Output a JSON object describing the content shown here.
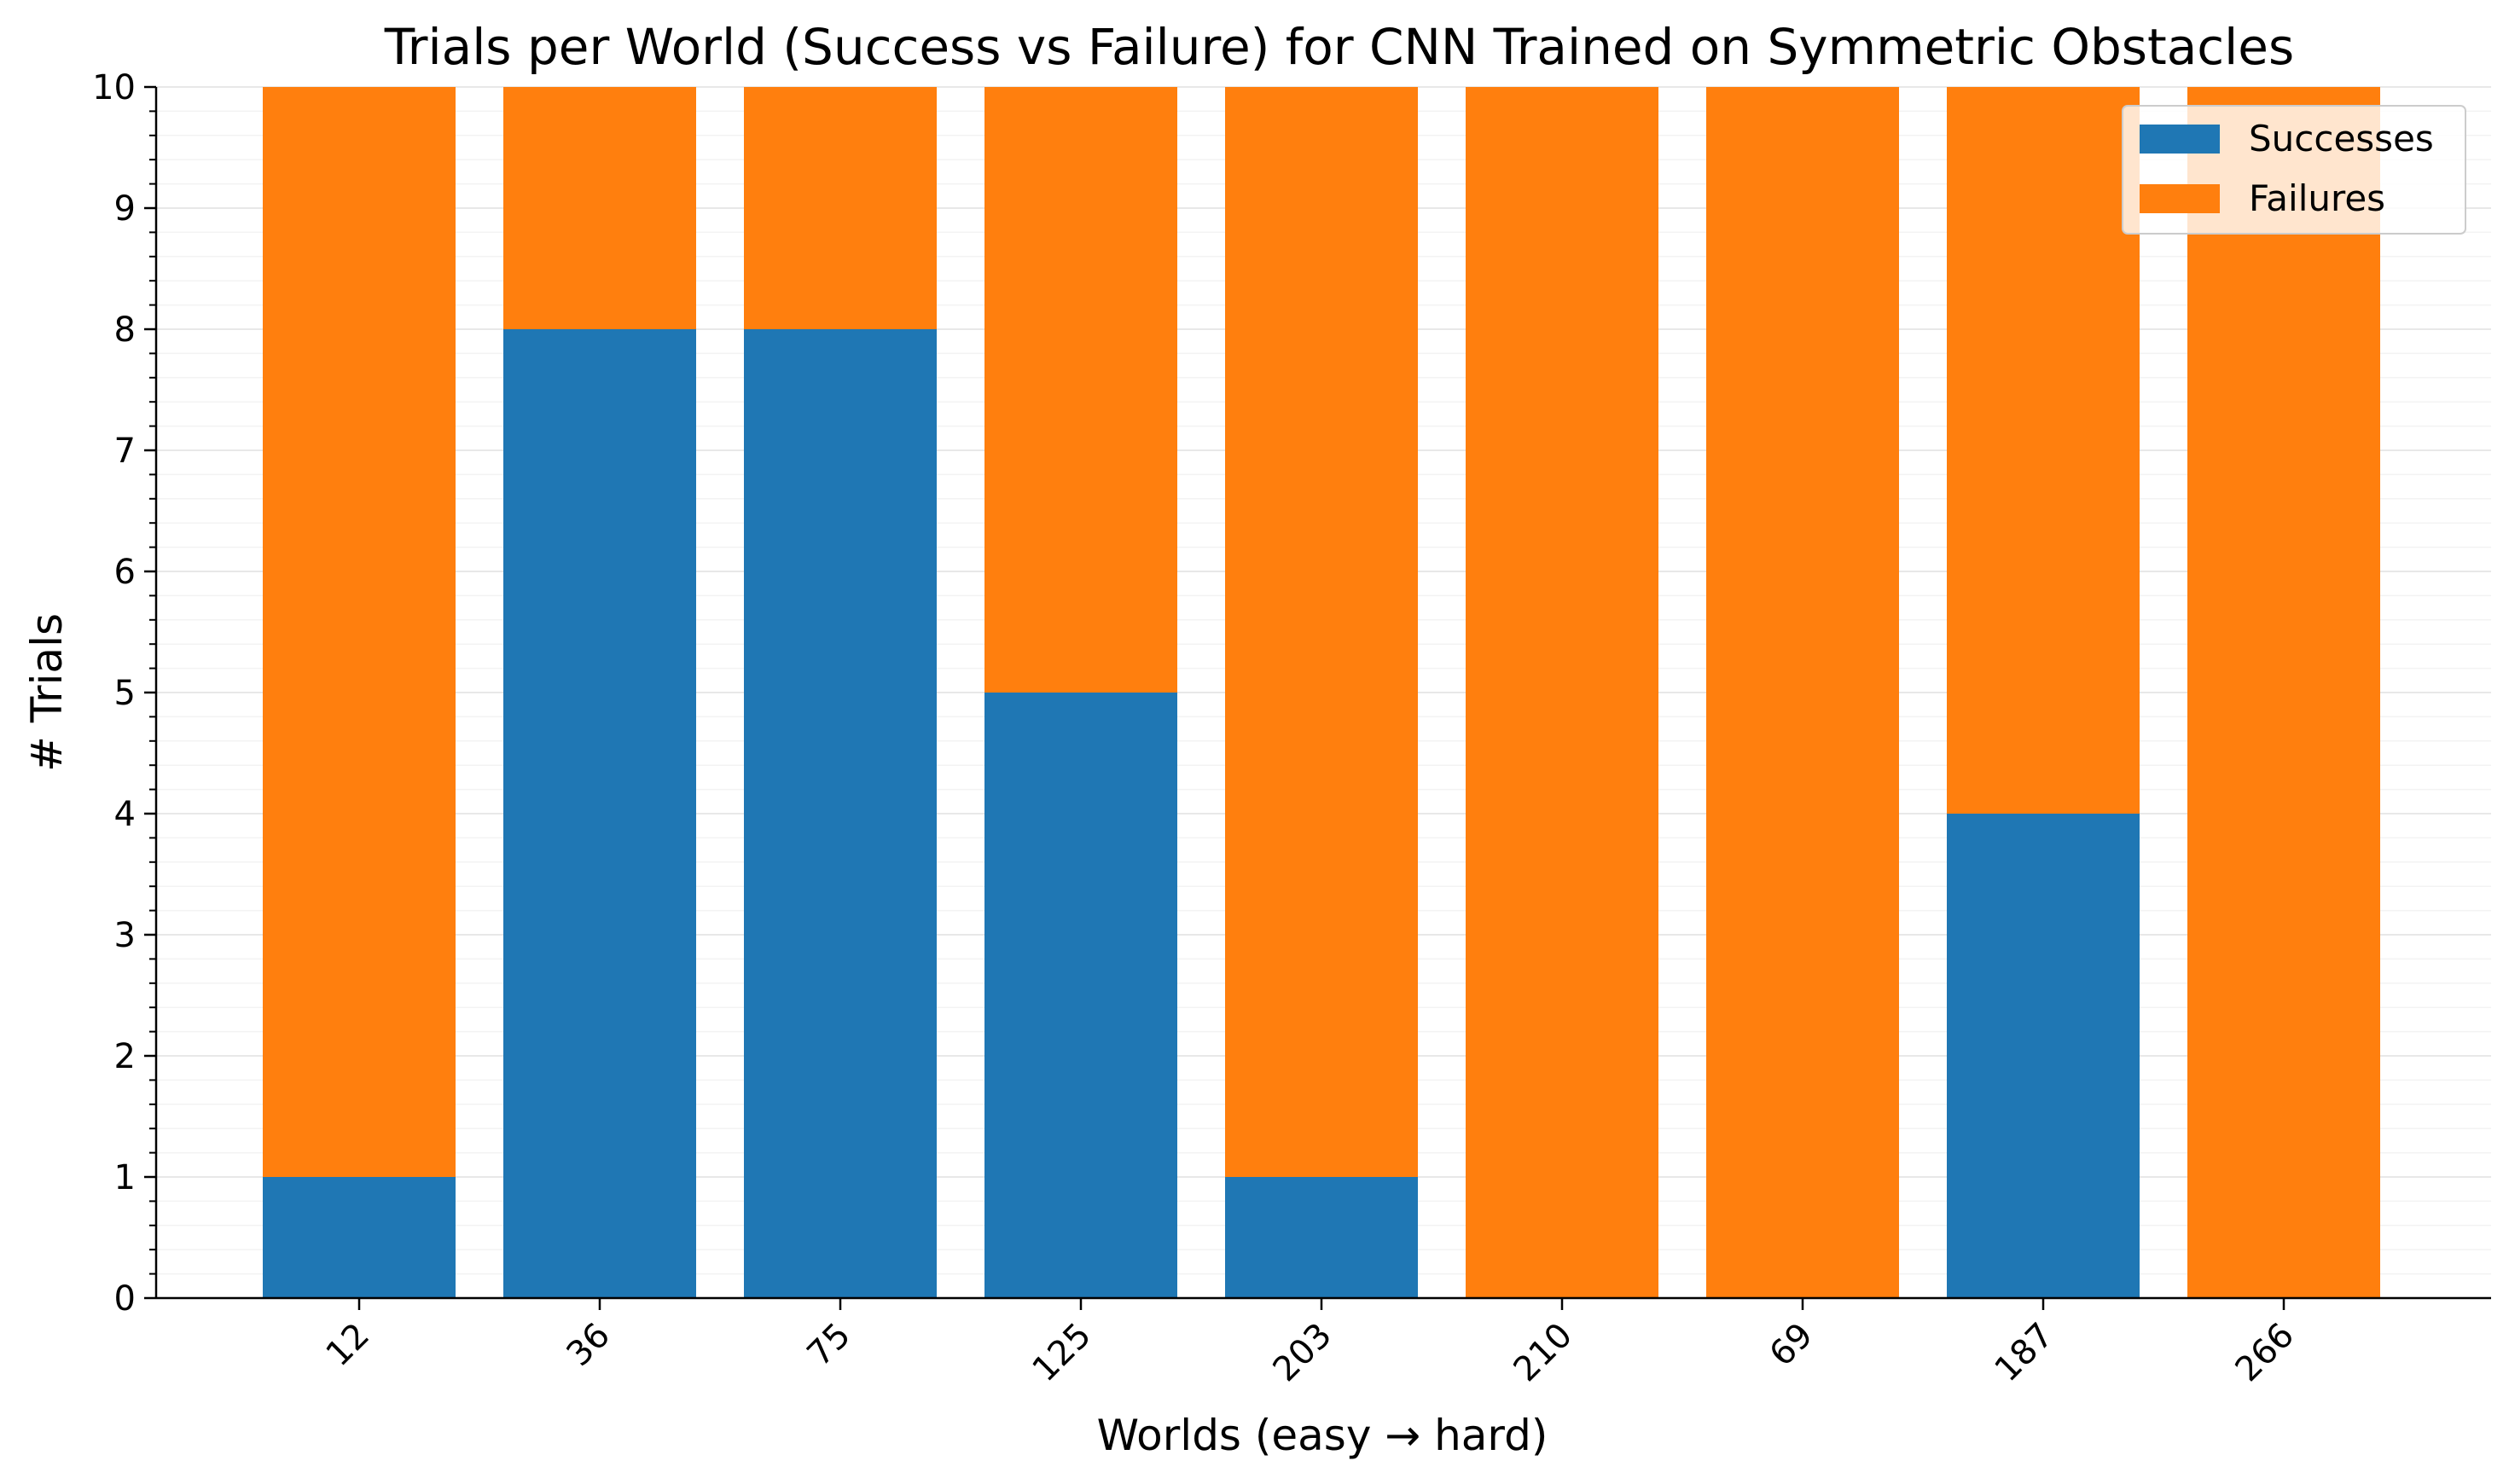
{
  "chart_data": {
    "type": "bar",
    "stacked": true,
    "title": "Trials per World (Success vs Failure) for CNN Trained on Symmetric Obstacles",
    "xlabel": "Worlds (easy → hard)",
    "ylabel": "# Trials",
    "categories": [
      "12",
      "36",
      "75",
      "125",
      "203",
      "210",
      "69",
      "187",
      "266"
    ],
    "series": [
      {
        "name": "Successes",
        "color": "#1f77b4",
        "values": [
          1,
          8,
          8,
          5,
          1,
          0,
          0,
          4,
          0
        ]
      },
      {
        "name": "Failures",
        "color": "#ff7f0e",
        "values": [
          9,
          2,
          2,
          5,
          9,
          10,
          10,
          6,
          10
        ]
      }
    ],
    "ylim": [
      0,
      10
    ],
    "yticks": [
      0,
      1,
      2,
      3,
      4,
      5,
      6,
      7,
      8,
      9,
      10
    ],
    "minor_ticks_per_major": 5,
    "grid": true,
    "legend_position": "top-right",
    "x_tick_rotation": -45
  }
}
